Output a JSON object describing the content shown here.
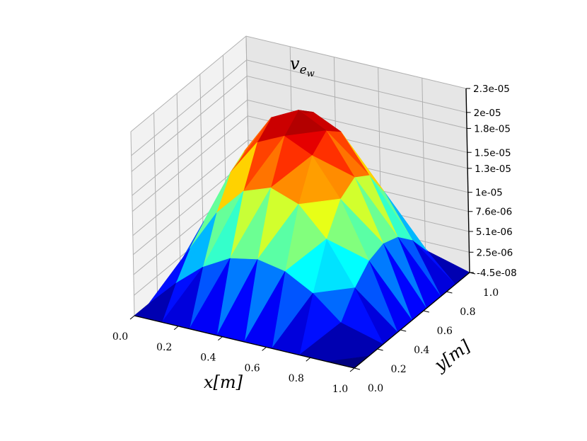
{
  "chart_data": {
    "type": "surface3d",
    "title": "v_{e_w}",
    "title_main": "v",
    "title_sub": "e",
    "title_subsub": "w",
    "xlabel": "x[m]",
    "ylabel": "y[m]",
    "zlabel": "",
    "x_ticks": [
      "0.0",
      "0.2",
      "0.4",
      "0.6",
      "0.8",
      "1.0"
    ],
    "y_ticks": [
      "0.0",
      "0.2",
      "0.4",
      "0.6",
      "0.8",
      "1.0"
    ],
    "z_ticks": [
      "-4.5e-08",
      "2.5e-06",
      "5.1e-06",
      "7.6e-06",
      "1e-05",
      "1.3e-05",
      "1.5e-05",
      "1.8e-05",
      "2e-05",
      "2.3e-05"
    ],
    "xlim": [
      0,
      1
    ],
    "ylim": [
      0,
      1
    ],
    "zlim": [
      -4.5e-08,
      2.3e-05
    ],
    "colormap": "jet",
    "grid": true,
    "surface": {
      "x": [
        0.0,
        0.125,
        0.25,
        0.375,
        0.5,
        0.625,
        0.75,
        0.875,
        1.0
      ],
      "y": [
        0.0,
        0.125,
        0.25,
        0.375,
        0.5,
        0.625,
        0.75,
        0.875,
        1.0
      ],
      "z_max": 2.3e-05,
      "z_min": -4.5e-08,
      "shape": "sin(pi x) * sin(pi y)"
    }
  }
}
